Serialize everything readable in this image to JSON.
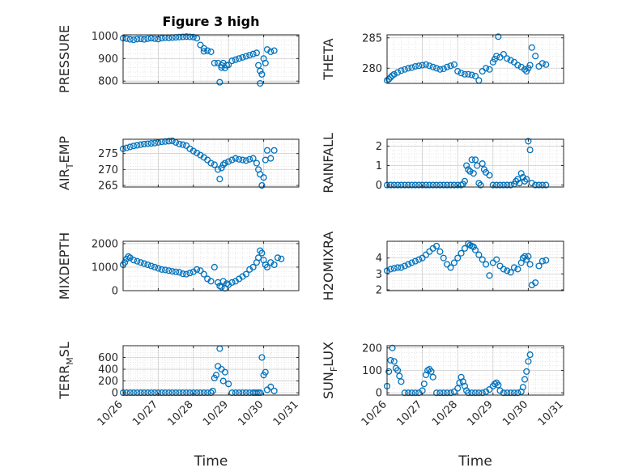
{
  "chart_data": [
    {
      "type": "scatter",
      "title": "Figure 3 high",
      "ylabel": "PRESSURE",
      "ylim": [
        790,
        1005
      ],
      "yticks": [
        800,
        900,
        1000
      ],
      "xlim": [
        0,
        5
      ],
      "xticks": [
        0,
        1,
        2,
        3,
        4,
        5
      ],
      "grid": true,
      "color": "#0072BD",
      "x": [
        0.0,
        0.1,
        0.2,
        0.3,
        0.4,
        0.5,
        0.6,
        0.7,
        0.8,
        0.9,
        1.0,
        1.1,
        1.2,
        1.3,
        1.4,
        1.5,
        1.6,
        1.7,
        1.8,
        1.9,
        2.0,
        2.1,
        2.2,
        2.3,
        2.3,
        2.4,
        2.5,
        2.6,
        2.7,
        2.75,
        2.8,
        2.8,
        2.85,
        2.9,
        2.95,
        3.0,
        3.1,
        3.2,
        3.3,
        3.4,
        3.5,
        3.6,
        3.7,
        3.8,
        3.85,
        3.9,
        3.9,
        3.95,
        4.0,
        4.05,
        4.1,
        4.2,
        4.3
      ],
      "values": [
        990,
        988,
        985,
        983,
        986,
        987,
        985,
        988,
        990,
        988,
        986,
        990,
        992,
        991,
        993,
        994,
        995,
        996,
        997,
        996,
        995,
        990,
        960,
        945,
        932,
        935,
        930,
        880,
        880,
        795,
        860,
        870,
        880,
        858,
        870,
        872,
        890,
        895,
        900,
        905,
        910,
        915,
        920,
        925,
        870,
        845,
        790,
        830,
        900,
        880,
        940,
        930,
        935
      ]
    },
    {
      "type": "scatter",
      "ylabel": "THETA",
      "ylim": [
        277.5,
        285.5
      ],
      "yticks": [
        280,
        285
      ],
      "xlim": [
        0,
        5
      ],
      "grid": true,
      "color": "#0072BD",
      "x": [
        0.0,
        0.05,
        0.1,
        0.15,
        0.2,
        0.3,
        0.4,
        0.5,
        0.6,
        0.7,
        0.8,
        0.9,
        1.0,
        1.1,
        1.2,
        1.3,
        1.4,
        1.5,
        1.6,
        1.7,
        1.8,
        1.9,
        2.0,
        2.1,
        2.2,
        2.3,
        2.4,
        2.5,
        2.6,
        2.7,
        2.8,
        2.9,
        3.0,
        3.05,
        3.1,
        3.15,
        3.2,
        3.3,
        3.4,
        3.5,
        3.6,
        3.7,
        3.8,
        3.9,
        3.95,
        4.0,
        4.05,
        4.1,
        4.2,
        4.3,
        4.4,
        4.5
      ],
      "values": [
        278.0,
        278.2,
        278.5,
        278.8,
        279.0,
        279.3,
        279.6,
        279.8,
        280.0,
        280.1,
        280.3,
        280.4,
        280.5,
        280.6,
        280.4,
        280.2,
        280.0,
        279.8,
        279.9,
        280.2,
        280.4,
        280.6,
        279.5,
        279.2,
        279.0,
        279.0,
        278.9,
        278.7,
        278.0,
        279.5,
        280.0,
        279.8,
        281.0,
        281.5,
        282.0,
        285.2,
        281.8,
        282.3,
        281.6,
        281.3,
        281.0,
        280.5,
        280.2,
        279.8,
        279.5,
        280.0,
        280.5,
        283.4,
        282.0,
        280.3,
        280.8,
        280.6
      ]
    },
    {
      "type": "scatter",
      "ylabel": "AIR_TEMP",
      "ylim": [
        264.5,
        279.5
      ],
      "yticks": [
        265,
        270,
        275
      ],
      "xlim": [
        0,
        5
      ],
      "grid": true,
      "color": "#0072BD",
      "x": [
        0.0,
        0.1,
        0.2,
        0.3,
        0.4,
        0.5,
        0.6,
        0.7,
        0.8,
        0.9,
        1.0,
        1.1,
        1.2,
        1.3,
        1.4,
        1.5,
        1.6,
        1.7,
        1.8,
        1.9,
        2.0,
        2.1,
        2.2,
        2.3,
        2.4,
        2.5,
        2.6,
        2.7,
        2.75,
        2.8,
        2.85,
        2.9,
        3.0,
        3.1,
        3.2,
        3.3,
        3.4,
        3.5,
        3.6,
        3.7,
        3.8,
        3.85,
        3.9,
        3.95,
        4.0,
        4.05,
        4.1,
        4.2,
        4.3
      ],
      "values": [
        276.5,
        276.8,
        277.1,
        277.4,
        277.6,
        277.8,
        278.0,
        278.1,
        278.2,
        278.3,
        278.5,
        278.7,
        278.8,
        278.9,
        279.0,
        278.5,
        278.0,
        277.8,
        277.5,
        276.5,
        275.8,
        275.2,
        274.5,
        273.8,
        273.0,
        272.0,
        271.5,
        270.0,
        267.0,
        270.5,
        271.5,
        272.0,
        272.5,
        273.0,
        273.5,
        273.2,
        273.0,
        272.8,
        273.2,
        273.5,
        272.0,
        270.0,
        268.5,
        265.0,
        267.5,
        273.0,
        276.0,
        273.5,
        276.0
      ]
    },
    {
      "type": "scatter",
      "ylabel": "RAINFALL",
      "ylim": [
        -0.1,
        2.35
      ],
      "yticks": [
        0,
        1,
        2
      ],
      "xlim": [
        0,
        5
      ],
      "grid": true,
      "color": "#0072BD",
      "x": [
        0.0,
        0.1,
        0.2,
        0.3,
        0.4,
        0.5,
        0.6,
        0.7,
        0.8,
        0.9,
        1.0,
        1.1,
        1.2,
        1.3,
        1.4,
        1.5,
        1.6,
        1.7,
        1.8,
        1.9,
        2.0,
        2.1,
        2.15,
        2.2,
        2.25,
        2.3,
        2.35,
        2.4,
        2.45,
        2.5,
        2.55,
        2.6,
        2.65,
        2.7,
        2.75,
        2.8,
        2.9,
        3.0,
        3.1,
        3.2,
        3.3,
        3.4,
        3.5,
        3.6,
        3.65,
        3.7,
        3.75,
        3.8,
        3.85,
        3.9,
        3.95,
        4.0,
        4.05,
        4.1,
        4.2,
        4.3,
        4.4,
        4.5
      ],
      "values": [
        0,
        0,
        0,
        0,
        0,
        0,
        0,
        0,
        0,
        0,
        0,
        0,
        0,
        0,
        0,
        0,
        0,
        0,
        0,
        0,
        0,
        0,
        0.05,
        0.2,
        1.0,
        0.8,
        0.7,
        1.3,
        0.6,
        1.3,
        1.0,
        0.1,
        0,
        1.1,
        0.8,
        0.65,
        0.5,
        0.0,
        0,
        0,
        0,
        0,
        0,
        0.05,
        0.2,
        0.3,
        0.1,
        0.6,
        0.4,
        0.2,
        0.3,
        2.25,
        1.8,
        0.1,
        0.0,
        0,
        0,
        0
      ]
    },
    {
      "type": "scatter",
      "ylabel": "MIXDEPTH",
      "ylim": [
        0,
        2100
      ],
      "yticks": [
        0,
        1000,
        2000
      ],
      "xlim": [
        0,
        5
      ],
      "grid": true,
      "color": "#0072BD",
      "x": [
        0.0,
        0.05,
        0.1,
        0.15,
        0.2,
        0.3,
        0.4,
        0.5,
        0.6,
        0.7,
        0.8,
        0.9,
        1.0,
        1.1,
        1.2,
        1.3,
        1.4,
        1.5,
        1.6,
        1.7,
        1.8,
        1.9,
        2.0,
        2.1,
        2.2,
        2.3,
        2.4,
        2.5,
        2.6,
        2.7,
        2.75,
        2.8,
        2.85,
        2.9,
        2.95,
        3.0,
        3.1,
        3.2,
        3.3,
        3.4,
        3.5,
        3.6,
        3.7,
        3.8,
        3.85,
        3.9,
        3.95,
        4.0,
        4.05,
        4.1,
        4.2,
        4.3,
        4.4,
        4.5
      ],
      "values": [
        1100,
        1200,
        1350,
        1450,
        1400,
        1300,
        1250,
        1200,
        1150,
        1100,
        1050,
        1000,
        950,
        900,
        880,
        850,
        820,
        800,
        780,
        720,
        700,
        750,
        800,
        900,
        850,
        700,
        500,
        400,
        1000,
        350,
        200,
        150,
        400,
        100,
        300,
        250,
        350,
        400,
        500,
        600,
        700,
        900,
        1000,
        1200,
        1400,
        1700,
        1600,
        1300,
        1100,
        1000,
        1200,
        1100,
        1400,
        1350
      ]
    },
    {
      "type": "scatter",
      "ylabel": "H2OMIXRA",
      "ylim": [
        1.95,
        5.05
      ],
      "yticks": [
        2,
        3,
        4
      ],
      "xlim": [
        0,
        5
      ],
      "grid": true,
      "color": "#0072BD",
      "x": [
        0.0,
        0.1,
        0.2,
        0.3,
        0.4,
        0.5,
        0.6,
        0.7,
        0.8,
        0.9,
        1.0,
        1.1,
        1.2,
        1.3,
        1.4,
        1.5,
        1.6,
        1.7,
        1.8,
        1.9,
        2.0,
        2.1,
        2.2,
        2.3,
        2.35,
        2.4,
        2.45,
        2.5,
        2.6,
        2.7,
        2.8,
        2.9,
        3.0,
        3.1,
        3.2,
        3.3,
        3.4,
        3.5,
        3.6,
        3.7,
        3.8,
        3.85,
        3.9,
        3.95,
        4.0,
        4.05,
        4.1,
        4.2,
        4.3,
        4.4,
        4.5
      ],
      "values": [
        3.2,
        3.3,
        3.35,
        3.4,
        3.4,
        3.5,
        3.6,
        3.7,
        3.8,
        3.9,
        4.0,
        4.2,
        4.4,
        4.6,
        4.75,
        4.4,
        4.0,
        3.6,
        3.4,
        3.7,
        4.0,
        4.3,
        4.6,
        4.9,
        4.8,
        4.75,
        4.7,
        4.5,
        4.2,
        3.9,
        3.6,
        2.9,
        3.7,
        3.9,
        3.5,
        3.3,
        3.2,
        3.1,
        3.4,
        3.3,
        3.7,
        4.0,
        4.1,
        3.9,
        4.1,
        3.6,
        2.3,
        2.45,
        3.5,
        3.8,
        3.85
      ]
    },
    {
      "type": "scatter",
      "ylabel": "TERR_MSL",
      "ylim": [
        -40,
        800
      ],
      "yticks": [
        0,
        200,
        400,
        600
      ],
      "xlim": [
        0,
        5
      ],
      "xticks": [
        0,
        1,
        2,
        3,
        4,
        5
      ],
      "xticklabels": [
        "10/26",
        "10/27",
        "10/28",
        "10/29",
        "10/30",
        "10/31"
      ],
      "xlabel": "Time",
      "grid": true,
      "color": "#0072BD",
      "x": [
        0.0,
        0.1,
        0.2,
        0.3,
        0.4,
        0.5,
        0.6,
        0.7,
        0.8,
        0.9,
        1.0,
        1.1,
        1.2,
        1.3,
        1.4,
        1.5,
        1.6,
        1.7,
        1.8,
        1.9,
        2.0,
        2.1,
        2.2,
        2.3,
        2.4,
        2.5,
        2.55,
        2.6,
        2.65,
        2.7,
        2.75,
        2.8,
        2.85,
        2.9,
        3.0,
        3.1,
        3.2,
        3.3,
        3.4,
        3.5,
        3.6,
        3.7,
        3.75,
        3.8,
        3.85,
        3.9,
        3.95,
        4.0,
        4.05,
        4.1,
        4.2,
        4.3
      ],
      "values": [
        0,
        0,
        0,
        0,
        0,
        0,
        0,
        0,
        0,
        0,
        0,
        0,
        0,
        0,
        0,
        0,
        0,
        0,
        0,
        0,
        0,
        0,
        0,
        0,
        0,
        0,
        30,
        250,
        300,
        450,
        750,
        400,
        200,
        350,
        150,
        0,
        0,
        0,
        0,
        0,
        0,
        0,
        0,
        0,
        0,
        0,
        600,
        300,
        350,
        50,
        100,
        30
      ]
    },
    {
      "type": "scatter",
      "ylabel": "SUN_FLUX",
      "ylim": [
        -10,
        210
      ],
      "yticks": [
        0,
        100,
        200
      ],
      "xlim": [
        0,
        5
      ],
      "xticks": [
        0,
        1,
        2,
        3,
        4,
        5
      ],
      "xticklabels": [
        "10/26",
        "10/27",
        "10/28",
        "10/29",
        "10/30",
        "10/31"
      ],
      "xlabel": "Time",
      "grid": true,
      "color": "#0072BD",
      "x": [
        0.0,
        0.05,
        0.1,
        0.15,
        0.2,
        0.25,
        0.3,
        0.35,
        0.4,
        0.5,
        0.6,
        0.7,
        0.8,
        0.9,
        1.0,
        1.05,
        1.1,
        1.15,
        1.2,
        1.25,
        1.3,
        1.4,
        1.5,
        1.6,
        1.7,
        1.8,
        1.9,
        2.0,
        2.05,
        2.1,
        2.15,
        2.2,
        2.25,
        2.3,
        2.4,
        2.5,
        2.6,
        2.7,
        2.8,
        2.9,
        3.0,
        3.05,
        3.1,
        3.15,
        3.2,
        3.3,
        3.4,
        3.5,
        3.6,
        3.7,
        3.8,
        3.85,
        3.9,
        3.95,
        4.0,
        4.05
      ],
      "values": [
        30,
        95,
        145,
        200,
        140,
        110,
        100,
        75,
        50,
        0,
        0,
        0,
        0,
        0,
        10,
        40,
        80,
        100,
        105,
        95,
        70,
        0,
        0,
        0,
        0,
        0,
        5,
        20,
        45,
        70,
        50,
        30,
        10,
        0,
        0,
        0,
        0,
        0,
        5,
        15,
        30,
        40,
        45,
        35,
        10,
        0,
        0,
        0,
        0,
        0,
        5,
        25,
        60,
        95,
        140,
        170
      ]
    }
  ]
}
